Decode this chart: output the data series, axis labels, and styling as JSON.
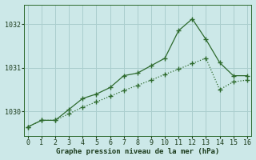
{
  "line1_x": [
    0,
    1,
    2,
    3,
    4,
    5,
    6,
    7,
    8,
    9,
    10,
    11,
    12,
    13,
    14,
    15,
    16
  ],
  "line1_y": [
    1029.65,
    1029.8,
    1029.8,
    1029.95,
    1030.1,
    1030.22,
    1030.35,
    1030.48,
    1030.6,
    1030.72,
    1030.85,
    1030.97,
    1031.1,
    1031.22,
    1030.5,
    1030.68,
    1030.72
  ],
  "line2_x": [
    0,
    1,
    2,
    3,
    4,
    5,
    6,
    7,
    8,
    9,
    10,
    11,
    12,
    13,
    14,
    15,
    16
  ],
  "line2_y": [
    1029.65,
    1029.8,
    1029.8,
    1030.05,
    1030.3,
    1030.4,
    1030.55,
    1030.82,
    1030.88,
    1031.05,
    1031.22,
    1031.85,
    1032.12,
    1031.65,
    1031.12,
    1030.82,
    1030.82
  ],
  "line_color": "#2d6a2d",
  "bg_color": "#cce8e8",
  "grid_color": "#aacece",
  "xlabel": "Graphe pression niveau de la mer (hPa)",
  "ylim": [
    1029.45,
    1032.45
  ],
  "xlim": [
    -0.3,
    16.3
  ],
  "yticks": [
    1030,
    1031,
    1032
  ],
  "xticks": [
    0,
    1,
    2,
    3,
    4,
    5,
    6,
    7,
    8,
    9,
    10,
    11,
    12,
    13,
    14,
    15,
    16
  ]
}
